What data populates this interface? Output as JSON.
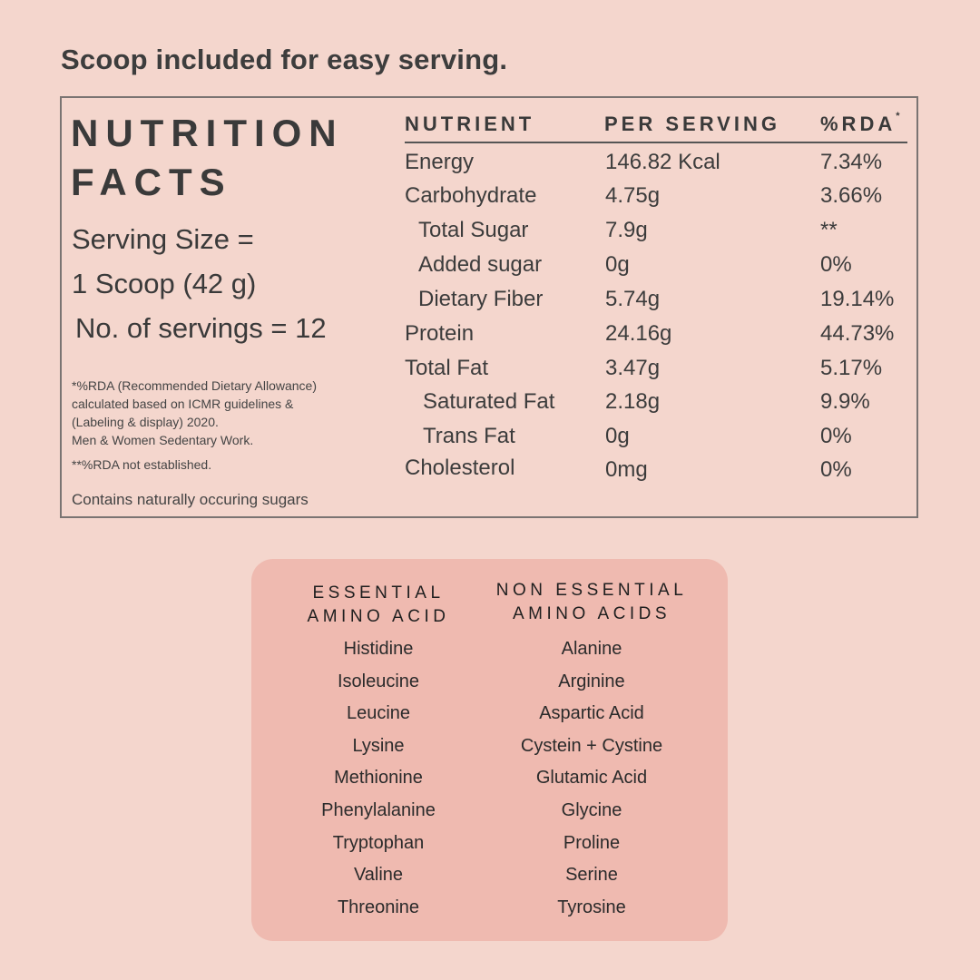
{
  "headline": "Scoop included for easy serving.",
  "nutrition": {
    "title_line1": "NUTRITION",
    "title_line2": "FACTS",
    "serving_size_label": "Serving Size =",
    "serving_size_value": "1 Scoop (42 g)",
    "servings_count": "No. of servings = 12",
    "notes": [
      "*%RDA (Recommended Dietary Allowance)",
      "calculated based on ICMR guidelines &",
      "(Labeling & display) 2020.",
      "Men & Women Sedentary Work."
    ],
    "note_not_established": "**%RDA not established.",
    "contains": "Contains naturally occuring sugars",
    "columns": {
      "nutrient": "NUTRIENT",
      "per_serving": "PER SERVING",
      "rda": "%RDA",
      "rda_mark": "*"
    },
    "rows": [
      {
        "name": "Energy",
        "value": "146.82 Kcal",
        "rda": "7.34%"
      },
      {
        "name": "Carbohydrate",
        "value": "4.75g",
        "rda": "3.66%"
      },
      {
        "name": "Total Sugar",
        "value": "7.9g",
        "rda": "**"
      },
      {
        "name": "Added sugar",
        "value": "0g",
        "rda": "0%"
      },
      {
        "name": "Dietary Fiber",
        "value": "5.74g",
        "rda": "19.14%"
      },
      {
        "name": "Protein",
        "value": "24.16g",
        "rda": "44.73%"
      },
      {
        "name": "Total Fat",
        "value": "3.47g",
        "rda": "5.17%"
      },
      {
        "name": "Saturated Fat",
        "value": "2.18g",
        "rda": "9.9%"
      },
      {
        "name": "Trans Fat",
        "value": "0g",
        "rda": "0%"
      },
      {
        "name": "Cholesterol",
        "value": "0mg",
        "rda": "0%"
      }
    ]
  },
  "amino": {
    "essential_head_line1": "ESSENTIAL",
    "essential_head_line2": "AMINO ACID",
    "non_essential_head_line1": "NON ESSENTIAL",
    "non_essential_head_line2": "AMINO ACIDS",
    "essential": [
      "Histidine",
      "Isoleucine",
      "Leucine",
      "Lysine",
      "Methionine",
      "Phenylalanine",
      "Tryptophan",
      "Valine",
      "Threonine"
    ],
    "non_essential": [
      "Alanine",
      "Arginine",
      "Aspartic Acid",
      "Cystein + Cystine",
      "Glutamic Acid",
      "Glycine",
      "Proline",
      "Serine",
      "Tyrosine"
    ]
  },
  "colors": {
    "background": "#f4d6cd",
    "amino_panel": "#efbab0",
    "text": "#3b3b3b"
  }
}
